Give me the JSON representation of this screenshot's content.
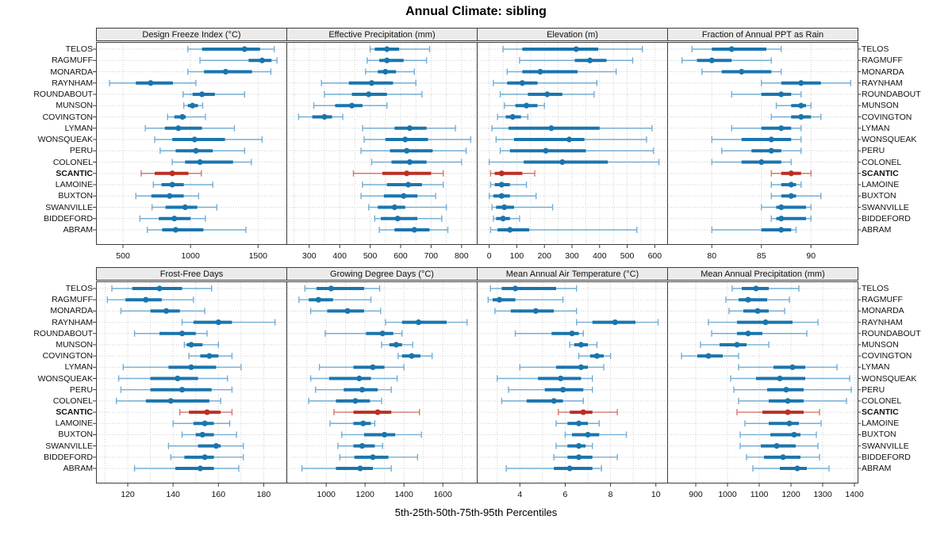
{
  "page": {
    "title": "Annual Climate: sibling",
    "caption": "5th-25th-50th-75th-95th Percentiles"
  },
  "stations": [
    "TELOS",
    "RAGMUFF",
    "MONARDA",
    "RAYNHAM",
    "ROUNDABOUT",
    "MUNSON",
    "COVINGTON",
    "LYMAN",
    "WONSQUEAK",
    "PERU",
    "COLONEL",
    "SCANTIC",
    "LAMOINE",
    "BUXTON",
    "SWANVILLE",
    "BIDDEFORD",
    "ABRAM"
  ],
  "highlight_station": "SCANTIC",
  "percentile_labels": [
    "5th",
    "25th",
    "50th",
    "75th",
    "95th"
  ],
  "colors": {
    "blue": "#1a75ad",
    "blue_light": "#74aed4",
    "red": "#bb2f25",
    "red_light": "#d4776e",
    "grid": "#cfcfcf",
    "border": "#3c3c3c",
    "strip_bg": "#ebebeb"
  },
  "chart_data": [
    {
      "type": "percentile-dotplot",
      "title": "Design Freeze Index (°C)",
      "xlim": [
        300,
        1710
      ],
      "ticks": [
        500,
        1000,
        1500
      ],
      "grid_step": 500,
      "series": {
        "TELOS": [
          980,
          1085,
          1400,
          1515,
          1620
        ],
        "RAGMUFF": [
          1070,
          1430,
          1530,
          1600,
          1640
        ],
        "MONARDA": [
          980,
          1100,
          1260,
          1455,
          1595
        ],
        "RAYNHAM": [
          400,
          595,
          705,
          870,
          1040
        ],
        "ROUNDABOUT": [
          945,
          1015,
          1085,
          1180,
          1400
        ],
        "MUNSON": [
          950,
          980,
          1015,
          1055,
          1090
        ],
        "COVINGTON": [
          830,
          880,
          940,
          965,
          1110
        ],
        "LYMAN": [
          665,
          810,
          910,
          1085,
          1325
        ],
        "WONSQUEAK": [
          735,
          865,
          1030,
          1255,
          1530
        ],
        "PERU": [
          775,
          890,
          1040,
          1165,
          1400
        ],
        "COLONEL": [
          865,
          960,
          1070,
          1315,
          1450
        ],
        "SCANTIC": [
          635,
          735,
          865,
          985,
          1080
        ],
        "LAMOINE": [
          725,
          785,
          865,
          950,
          1165
        ],
        "BUXTON": [
          595,
          710,
          845,
          950,
          1060
        ],
        "SWANVILLE": [
          715,
          815,
          960,
          1050,
          1195
        ],
        "BIDDEFORD": [
          625,
          765,
          880,
          1000,
          1110
        ],
        "ABRAM": [
          680,
          790,
          890,
          1095,
          1410
        ]
      }
    },
    {
      "type": "percentile-dotplot",
      "title": "Effective Precipitation (mm)",
      "xlim": [
        225,
        850
      ],
      "ticks": [
        300,
        400,
        500,
        600,
        700,
        800
      ],
      "grid_step": 50,
      "series": {
        "TELOS": [
          500,
          515,
          555,
          595,
          695
        ],
        "RAGMUFF": [
          490,
          530,
          555,
          610,
          685
        ],
        "MONARDA": [
          485,
          525,
          550,
          585,
          645
        ],
        "RAYNHAM": [
          340,
          430,
          505,
          575,
          650
        ],
        "ROUNDABOUT": [
          350,
          440,
          495,
          555,
          670
        ],
        "MUNSON": [
          315,
          385,
          440,
          475,
          555
        ],
        "COVINGTON": [
          265,
          310,
          350,
          375,
          410
        ],
        "LYMAN": [
          475,
          580,
          630,
          685,
          780
        ],
        "WONSQUEAK": [
          480,
          550,
          615,
          690,
          830
        ],
        "PERU": [
          470,
          565,
          620,
          705,
          815
        ],
        "COLONEL": [
          505,
          570,
          630,
          685,
          800
        ],
        "SCANTIC": [
          445,
          540,
          620,
          700,
          740
        ],
        "LAMOINE": [
          475,
          555,
          625,
          670,
          740
        ],
        "BUXTON": [
          470,
          545,
          610,
          655,
          715
        ],
        "SWANVILLE": [
          495,
          525,
          580,
          615,
          750
        ],
        "BIDDEFORD": [
          515,
          535,
          590,
          655,
          735
        ],
        "ABRAM": [
          530,
          580,
          645,
          695,
          755
        ]
      }
    },
    {
      "type": "percentile-dotplot",
      "title": "Elevation (m)",
      "xlim": [
        -45,
        645
      ],
      "ticks": [
        0,
        100,
        200,
        300,
        400,
        500,
        600
      ],
      "grid_step": 50,
      "series": {
        "TELOS": [
          50,
          120,
          315,
          395,
          555
        ],
        "RAGMUFF": [
          110,
          310,
          365,
          425,
          520
        ],
        "MONARDA": [
          65,
          120,
          185,
          320,
          460
        ],
        "RAYNHAM": [
          15,
          65,
          120,
          175,
          390
        ],
        "ROUNDABOUT": [
          40,
          140,
          210,
          265,
          380
        ],
        "MUNSON": [
          55,
          95,
          135,
          175,
          200
        ],
        "COVINGTON": [
          30,
          60,
          85,
          115,
          140
        ],
        "LYMAN": [
          10,
          70,
          225,
          400,
          590
        ],
        "WONSQUEAK": [
          25,
          90,
          290,
          345,
          570
        ],
        "PERU": [
          40,
          75,
          205,
          350,
          595
        ],
        "COLONEL": [
          0,
          125,
          265,
          430,
          615
        ],
        "SCANTIC": [
          5,
          20,
          45,
          120,
          165
        ],
        "LAMOINE": [
          5,
          20,
          45,
          75,
          135
        ],
        "BUXTON": [
          0,
          15,
          45,
          75,
          170
        ],
        "SWANVILLE": [
          10,
          25,
          55,
          90,
          230
        ],
        "BIDDEFORD": [
          15,
          25,
          50,
          75,
          110
        ],
        "ABRAM": [
          5,
          30,
          75,
          145,
          535
        ]
      }
    },
    {
      "type": "percentile-dotplot",
      "title": "Fraction of Annual PPT as Rain",
      "xlim": [
        75.5,
        94.7
      ],
      "ticks": [
        80,
        85,
        90
      ],
      "grid_step": 5,
      "series": {
        "TELOS": [
          78,
          80,
          82,
          85.5,
          87
        ],
        "RAGMUFF": [
          77,
          78.5,
          80,
          82,
          86
        ],
        "MONARDA": [
          79,
          81,
          83,
          86,
          87
        ],
        "RAYNHAM": [
          85,
          87,
          89,
          91,
          94
        ],
        "ROUNDABOUT": [
          82,
          85,
          87,
          88,
          89
        ],
        "MUNSON": [
          86.5,
          88,
          89,
          89.5,
          90
        ],
        "COVINGTON": [
          86,
          88,
          89,
          90,
          91
        ],
        "LYMAN": [
          82,
          85,
          87,
          88,
          89
        ],
        "WONSQUEAK": [
          80,
          83,
          86,
          88,
          89
        ],
        "PERU": [
          81,
          84,
          86,
          87,
          89
        ],
        "COLONEL": [
          80,
          83,
          85,
          87,
          88
        ],
        "SCANTIC": [
          86,
          87,
          88,
          89,
          90
        ],
        "LAMOINE": [
          86,
          87,
          88,
          88.5,
          89
        ],
        "BUXTON": [
          86,
          87,
          88,
          88.5,
          91
        ],
        "SWANVILLE": [
          85,
          86.5,
          87,
          89.5,
          90
        ],
        "BIDDEFORD": [
          86,
          86.5,
          87,
          89.5,
          90
        ],
        "ABRAM": [
          80,
          85,
          87,
          88,
          88.5
        ]
      }
    },
    {
      "type": "percentile-dotplot",
      "title": "Frost-Free Days",
      "xlim": [
        106,
        190
      ],
      "ticks": [
        120,
        140,
        160,
        180
      ],
      "grid_step": 10,
      "series": {
        "TELOS": [
          113,
          122,
          134,
          144,
          157
        ],
        "RAGMUFF": [
          111,
          119,
          128,
          135,
          149
        ],
        "MONARDA": [
          117,
          130,
          137,
          143,
          154
        ],
        "RAYNHAM": [
          144,
          149,
          160,
          166,
          185
        ],
        "ROUNDABOUT": [
          123,
          134,
          144,
          150,
          155
        ],
        "MUNSON": [
          145,
          146,
          148,
          153,
          160
        ],
        "COVINGTON": [
          147,
          152,
          156,
          160,
          166
        ],
        "LYMAN": [
          118,
          138,
          148,
          159,
          170
        ],
        "WONSQUEAK": [
          116,
          130,
          142,
          151,
          164
        ],
        "PERU": [
          117,
          130,
          144,
          157,
          166
        ],
        "COLONEL": [
          115,
          128,
          139,
          156,
          161
        ],
        "SCANTIC": [
          143,
          147,
          155,
          161,
          166
        ],
        "LAMOINE": [
          140,
          149,
          154,
          158,
          165
        ],
        "BUXTON": [
          144,
          150,
          153,
          158,
          168
        ],
        "SWANVILLE": [
          138,
          151,
          159,
          161,
          171
        ],
        "BIDDEFORD": [
          139,
          145,
          154,
          158,
          171
        ],
        "ABRAM": [
          123,
          141,
          152,
          158,
          169
        ]
      }
    },
    {
      "type": "percentile-dotplot",
      "title": "Growing Degree Days (°C)",
      "xlim": [
        795,
        1775
      ],
      "ticks": [
        1000,
        1200,
        1400,
        1600
      ],
      "grid_step": 100,
      "series": {
        "TELOS": [
          890,
          950,
          1025,
          1195,
          1275
        ],
        "RAGMUFF": [
          860,
          910,
          960,
          1035,
          1230
        ],
        "MONARDA": [
          920,
          1005,
          1110,
          1195,
          1280
        ],
        "RAYNHAM": [
          1305,
          1390,
          1475,
          1620,
          1725
        ],
        "ROUNDABOUT": [
          995,
          1205,
          1290,
          1345,
          1390
        ],
        "MUNSON": [
          1285,
          1325,
          1360,
          1390,
          1445
        ],
        "COVINGTON": [
          1370,
          1390,
          1440,
          1485,
          1545
        ],
        "LYMAN": [
          965,
          1140,
          1240,
          1300,
          1400
        ],
        "WONSQUEAK": [
          920,
          1015,
          1170,
          1230,
          1365
        ],
        "PERU": [
          945,
          1090,
          1185,
          1265,
          1335
        ],
        "COLONEL": [
          910,
          1050,
          1150,
          1225,
          1285
        ],
        "SCANTIC": [
          1040,
          1140,
          1265,
          1335,
          1480
        ],
        "LAMOINE": [
          1020,
          1140,
          1190,
          1230,
          1250
        ],
        "BUXTON": [
          1080,
          1195,
          1300,
          1355,
          1490
        ],
        "SWANVILLE": [
          1060,
          1140,
          1185,
          1250,
          1290
        ],
        "BIDDEFORD": [
          1070,
          1145,
          1240,
          1320,
          1470
        ],
        "ABRAM": [
          875,
          1050,
          1175,
          1240,
          1335
        ]
      }
    },
    {
      "type": "percentile-dotplot",
      "title": "Mean Annual Air Temperature (°C)",
      "xlim": [
        2.1,
        10.5
      ],
      "ticks": [
        4,
        6,
        8,
        10
      ],
      "grid_step": 1,
      "series": {
        "TELOS": [
          2.7,
          3.2,
          3.8,
          5.6,
          6.5
        ],
        "RAGMUFF": [
          2.6,
          2.8,
          3.1,
          3.8,
          5.9
        ],
        "MONARDA": [
          2.9,
          3.6,
          4.7,
          5.5,
          6.5
        ],
        "RAYNHAM": [
          6.5,
          7.2,
          8.2,
          9.1,
          10.1
        ],
        "ROUNDABOUT": [
          3.8,
          5.4,
          6.3,
          6.6,
          6.8
        ],
        "MUNSON": [
          6.2,
          6.4,
          6.7,
          7.0,
          7.4
        ],
        "COVINGTON": [
          6.6,
          7.1,
          7.4,
          7.7,
          8.0
        ],
        "LYMAN": [
          4.0,
          5.6,
          6.7,
          7.0,
          7.7
        ],
        "WONSQUEAK": [
          3.0,
          4.8,
          5.8,
          6.7,
          7.2
        ],
        "PERU": [
          3.5,
          5.1,
          5.9,
          6.8,
          7.2
        ],
        "COLONEL": [
          3.2,
          4.3,
          5.5,
          5.9,
          6.8
        ],
        "SCANTIC": [
          5.7,
          6.2,
          6.8,
          7.2,
          8.3
        ],
        "LAMOINE": [
          5.6,
          6.1,
          6.6,
          7.0,
          7.5
        ],
        "BUXTON": [
          6.0,
          6.3,
          7.0,
          7.5,
          8.7
        ],
        "SWANVILLE": [
          5.6,
          6.1,
          6.6,
          6.9,
          7.2
        ],
        "BIDDEFORD": [
          5.5,
          6.1,
          6.6,
          7.2,
          8.3
        ],
        "ABRAM": [
          3.4,
          5.5,
          6.2,
          7.2,
          7.6
        ]
      }
    },
    {
      "type": "percentile-dotplot",
      "title": "Mean Annual Precipitation (mm)",
      "xlim": [
        810,
        1410
      ],
      "ticks": [
        900,
        1000,
        1100,
        1200,
        1300,
        1400
      ],
      "grid_step": 100,
      "series": {
        "TELOS": [
          1015,
          1045,
          1090,
          1130,
          1225
        ],
        "RAGMUFF": [
          995,
          1035,
          1065,
          1125,
          1195
        ],
        "MONARDA": [
          1005,
          1050,
          1095,
          1130,
          1180
        ],
        "RAYNHAM": [
          940,
          1030,
          1120,
          1205,
          1285
        ],
        "ROUNDABOUT": [
          950,
          1030,
          1065,
          1110,
          1250
        ],
        "MUNSON": [
          915,
          975,
          1030,
          1060,
          1130
        ],
        "COVINGTON": [
          855,
          905,
          940,
          985,
          1035
        ],
        "LYMAN": [
          1035,
          1145,
          1205,
          1245,
          1345
        ],
        "WONSQUEAK": [
          1010,
          1090,
          1165,
          1245,
          1385
        ],
        "PERU": [
          1020,
          1125,
          1185,
          1240,
          1390
        ],
        "COLONEL": [
          1035,
          1130,
          1190,
          1240,
          1375
        ],
        "SCANTIC": [
          1030,
          1110,
          1190,
          1240,
          1290
        ],
        "LAMOINE": [
          1055,
          1130,
          1195,
          1225,
          1295
        ],
        "BUXTON": [
          1040,
          1135,
          1210,
          1230,
          1280
        ],
        "SWANVILLE": [
          1040,
          1105,
          1155,
          1215,
          1285
        ],
        "BIDDEFORD": [
          1060,
          1115,
          1175,
          1230,
          1290
        ],
        "ABRAM": [
          1080,
          1165,
          1220,
          1250,
          1320
        ]
      }
    }
  ]
}
